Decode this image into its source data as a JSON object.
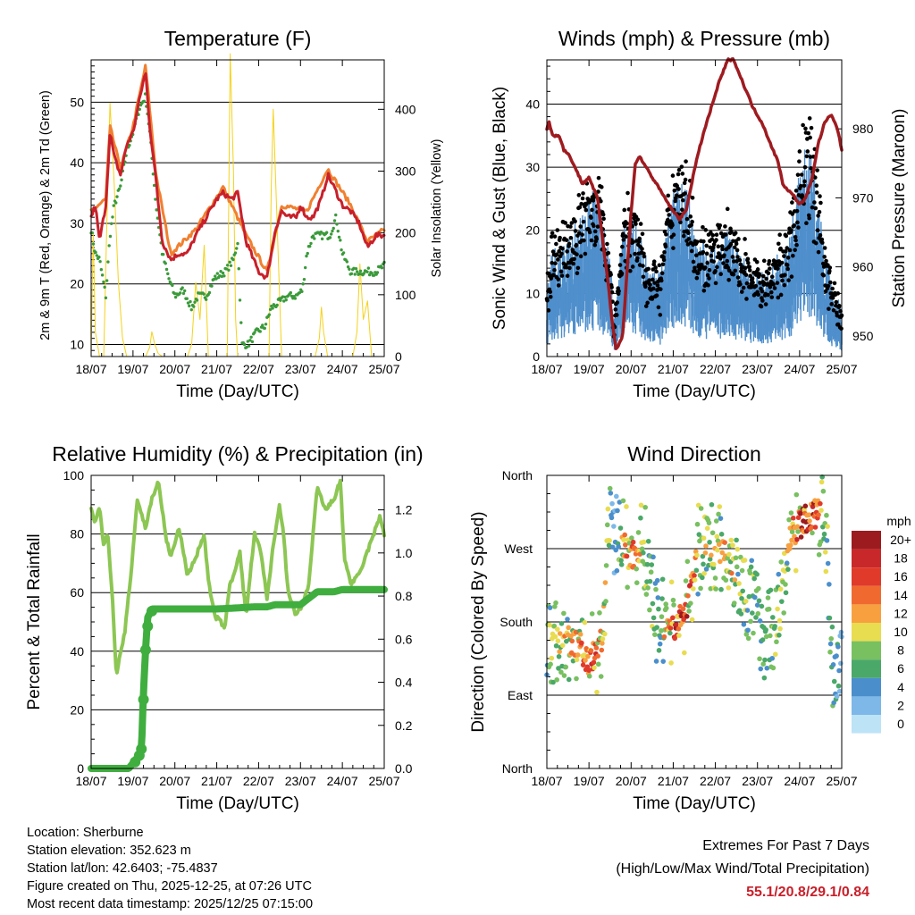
{
  "chart_data": [
    {
      "type": "line",
      "title": "Temperature (F)",
      "xlabel": "Time (Day/UTC)",
      "ylabel": "2m & 9m T (Red, Orange) & 2m Td (Green)",
      "y2label": "Solar Insolation (Yellow)",
      "x_ticks": [
        "18/07",
        "19/07",
        "20/07",
        "21/07",
        "22/07",
        "23/07",
        "24/07",
        "25/07"
      ],
      "xlim": [
        0,
        7
      ],
      "ylim": [
        8,
        57
      ],
      "y_ticks": [
        10,
        20,
        30,
        40,
        50
      ],
      "y2lim": [
        0,
        480
      ],
      "y2_ticks": [
        0,
        100,
        200,
        300,
        400
      ],
      "series": [
        {
          "name": "2m T",
          "color": "#c8202a",
          "x": [
            0,
            0.1,
            0.2,
            0.35,
            0.45,
            0.55,
            0.7,
            0.85,
            1.0,
            1.2,
            1.3,
            1.4,
            1.55,
            1.7,
            1.9,
            2.1,
            2.3,
            2.5,
            2.75,
            3.0,
            3.15,
            3.35,
            3.5,
            3.7,
            4.0,
            4.2,
            4.4,
            4.55,
            4.7,
            4.9,
            5.0,
            5.15,
            5.3,
            5.5,
            5.65,
            5.8,
            6.0,
            6.2,
            6.4,
            6.6,
            6.8,
            7.0
          ],
          "values": [
            31,
            33,
            27,
            33,
            45,
            41,
            38,
            43,
            45,
            52,
            55,
            46,
            37,
            27,
            24,
            25,
            25,
            28,
            31,
            34,
            35,
            34,
            35,
            27,
            22,
            21,
            29,
            32,
            31,
            31,
            33,
            31,
            31,
            34,
            38,
            36,
            33,
            32,
            30,
            26,
            28,
            28
          ]
        },
        {
          "name": "9m T",
          "color": "#f08030",
          "x": [
            0,
            0.35,
            0.45,
            0.7,
            1.0,
            1.3,
            1.55,
            1.9,
            2.5,
            3.15,
            3.7,
            4.2,
            4.55,
            5.15,
            5.65,
            6.2,
            6.6,
            7.0
          ],
          "values": [
            32,
            34,
            46,
            39,
            46,
            56,
            38,
            25,
            29,
            36,
            28,
            22,
            33,
            32,
            39,
            33,
            27,
            29
          ]
        },
        {
          "name": "2m Td",
          "color": "#3a9a3a",
          "x": [
            0,
            0.1,
            0.2,
            0.35,
            0.45,
            0.55,
            0.7,
            0.85,
            1.0,
            1.15,
            1.3,
            1.4,
            1.55,
            1.7,
            1.85,
            2.0,
            2.2,
            2.4,
            2.55,
            2.75,
            2.95,
            3.2,
            3.4,
            3.5,
            3.6,
            3.75,
            3.95,
            4.15,
            4.3,
            4.5,
            4.7,
            4.9,
            5.05,
            5.15,
            5.3,
            5.5,
            5.7,
            5.85,
            6.0,
            6.2,
            6.4,
            6.6,
            6.8,
            7.0
          ],
          "values": [
            29,
            25,
            24,
            18,
            28,
            33,
            36,
            42,
            45,
            49,
            51,
            45,
            33,
            25,
            21,
            18,
            19,
            16,
            18,
            18,
            21,
            22,
            24,
            27,
            10,
            10,
            12,
            13,
            16,
            17,
            18,
            18,
            19,
            25,
            28,
            28,
            28,
            31,
            25,
            22,
            22,
            22,
            22,
            23
          ]
        }
      ],
      "solar_series": {
        "name": "Solar Insolation",
        "color": "#f5d21a",
        "x": [
          0,
          0.05,
          0.1,
          0.2,
          0.3,
          0.37,
          0.45,
          0.55,
          0.65,
          0.75,
          0.85,
          1.0,
          1.3,
          1.4,
          1.45,
          1.52,
          1.6,
          1.7,
          2.0,
          2.3,
          2.4,
          2.5,
          2.6,
          2.7,
          2.8,
          3.0,
          3.25,
          3.32,
          3.4,
          3.45,
          3.5,
          3.6,
          3.7,
          4.0,
          4.25,
          4.3,
          4.35,
          4.45,
          4.55,
          4.6,
          4.7,
          5.0,
          5.35,
          5.45,
          5.5,
          5.55,
          5.65,
          5.75,
          6.0,
          6.25,
          6.35,
          6.42,
          6.5,
          6.6,
          6.7,
          7.0
        ],
        "values": [
          0,
          200,
          40,
          0,
          0,
          200,
          410,
          280,
          120,
          30,
          0,
          0,
          0,
          15,
          40,
          20,
          5,
          0,
          0,
          0,
          20,
          120,
          60,
          180,
          0,
          0,
          0,
          490,
          300,
          60,
          0,
          0,
          0,
          0,
          0,
          270,
          400,
          200,
          0,
          0,
          0,
          0,
          0,
          30,
          80,
          40,
          0,
          0,
          0,
          0,
          40,
          150,
          60,
          90,
          0,
          0
        ]
      }
    },
    {
      "type": "scatter",
      "title": "Winds (mph) & Pressure (mb)",
      "xlabel": "Time (Day/UTC)",
      "ylabel": "Sonic Wind & Gust (Blue, Black)",
      "y2label": "Station Pressure (Maroon)",
      "x_ticks": [
        "18/07",
        "19/07",
        "20/07",
        "21/07",
        "22/07",
        "23/07",
        "24/07",
        "25/07"
      ],
      "xlim": [
        0,
        7
      ],
      "ylim": [
        0,
        47
      ],
      "y_ticks": [
        0,
        10,
        20,
        30,
        40
      ],
      "y2lim": [
        947,
        990
      ],
      "y2_ticks": [
        950,
        960,
        970,
        980
      ],
      "wind_profile": {
        "x": [
          0,
          0.1,
          0.3,
          0.6,
          0.8,
          1.0,
          1.2,
          1.5,
          1.6,
          1.8,
          2.0,
          2.1,
          2.4,
          2.7,
          2.8,
          3.1,
          3.4,
          3.6,
          4.0,
          4.3,
          4.6,
          4.9,
          5.2,
          5.5,
          5.8,
          6.0,
          6.2,
          6.4,
          6.6,
          6.8,
          7.0
        ],
        "values": [
          5,
          8,
          9,
          10,
          12,
          13,
          14,
          8,
          2,
          10,
          12,
          11,
          7,
          6,
          10,
          16,
          13,
          9,
          9,
          10,
          8,
          7,
          6,
          8,
          10,
          16,
          18,
          15,
          8,
          5,
          3
        ]
      },
      "gust_color": "#000000",
      "wind_color": "#4f8fcc",
      "pressure": {
        "name": "Station Pressure",
        "color": "#9e1b20",
        "x": [
          0,
          0.05,
          0.15,
          0.3,
          0.4,
          0.55,
          0.7,
          0.85,
          1.0,
          1.2,
          1.3,
          1.45,
          1.55,
          1.65,
          1.8,
          2.0,
          2.1,
          2.2,
          2.4,
          2.6,
          2.8,
          3.0,
          3.15,
          3.3,
          3.5,
          3.7,
          3.9,
          4.1,
          4.3,
          4.45,
          4.5,
          4.7,
          4.9,
          5.1,
          5.3,
          5.5,
          5.6,
          5.75,
          5.9,
          6.0,
          6.15,
          6.3,
          6.45,
          6.6,
          6.75,
          6.9,
          7.0
        ],
        "values": [
          980,
          981,
          979,
          979,
          977,
          976,
          974,
          972,
          973,
          970,
          965,
          958,
          952,
          948,
          950,
          968,
          975,
          976,
          974,
          972,
          970,
          968,
          967,
          968,
          974,
          979,
          983,
          987,
          990,
          990,
          989,
          986,
          983,
          981,
          978,
          975,
          972,
          971,
          970,
          969,
          970,
          973,
          978,
          981,
          982,
          980,
          977
        ]
      }
    },
    {
      "type": "line",
      "title": "Relative Humidity (%) & Precipitation (in)",
      "xlabel": "Time (Day/UTC)",
      "ylabel": "Percent & Total Rainfall",
      "x_ticks": [
        "18/07",
        "19/07",
        "20/07",
        "21/07",
        "22/07",
        "23/07",
        "24/07",
        "25/07"
      ],
      "xlim": [
        0,
        7
      ],
      "ylim": [
        0,
        100
      ],
      "y_ticks": [
        0,
        20,
        40,
        60,
        80,
        100
      ],
      "y2lim": [
        0,
        1.36
      ],
      "y2_ticks": [
        0.0,
        0.2,
        0.4,
        0.6,
        0.8,
        1.0,
        1.2
      ],
      "series": [
        {
          "name": "Relative Humidity",
          "color": "#8cc653",
          "x": [
            0,
            0.1,
            0.2,
            0.3,
            0.4,
            0.5,
            0.6,
            0.8,
            0.95,
            1.1,
            1.3,
            1.45,
            1.6,
            1.8,
            1.9,
            2.1,
            2.3,
            2.5,
            2.7,
            2.8,
            2.95,
            3.1,
            3.2,
            3.3,
            3.4,
            3.55,
            3.7,
            3.9,
            4.05,
            4.2,
            4.35,
            4.5,
            4.6,
            4.7,
            4.9,
            5.05,
            5.2,
            5.4,
            5.6,
            5.8,
            5.95,
            6.05,
            6.2,
            6.4,
            6.6,
            6.75,
            6.9,
            7.0
          ],
          "values": [
            88,
            84,
            90,
            76,
            80,
            60,
            32,
            46,
            66,
            92,
            82,
            92,
            98,
            78,
            72,
            82,
            66,
            72,
            80,
            64,
            52,
            50,
            48,
            62,
            66,
            74,
            52,
            80,
            74,
            58,
            76,
            90,
            80,
            60,
            52,
            56,
            63,
            96,
            88,
            92,
            98,
            72,
            63,
            66,
            74,
            80,
            86,
            80
          ]
        },
        {
          "name": "Total Precipitation",
          "color": "#3fae3f",
          "x": [
            0,
            0.9,
            1.1,
            1.2,
            1.25,
            1.3,
            1.35,
            1.45,
            1.55,
            1.8,
            2.5,
            3.0,
            3.5,
            3.9,
            4.2,
            4.4,
            5.0,
            5.2,
            5.4,
            5.6,
            5.8,
            6.0,
            6.5,
            7.0
          ],
          "values": [
            0,
            0,
            0.05,
            0.08,
            0.35,
            0.55,
            0.7,
            0.74,
            0.74,
            0.74,
            0.74,
            0.74,
            0.745,
            0.75,
            0.75,
            0.76,
            0.76,
            0.79,
            0.82,
            0.82,
            0.82,
            0.83,
            0.83,
            0.83
          ]
        }
      ]
    },
    {
      "type": "scatter",
      "title": "Wind Direction",
      "xlabel": "Time (Day/UTC)",
      "ylabel": "Direction (Colored By Speed)",
      "x_ticks": [
        "18/07",
        "19/07",
        "20/07",
        "21/07",
        "22/07",
        "23/07",
        "24/07",
        "25/07"
      ],
      "xlim": [
        0,
        7
      ],
      "y_ticks": [
        "North",
        "East",
        "South",
        "West",
        "North"
      ],
      "ylim_deg": [
        0,
        360
      ],
      "colorbar_label": "mph",
      "colorbar_ticks": [
        "20+",
        "18",
        "16",
        "14",
        "12",
        "10",
        "8",
        "6",
        "4",
        "2",
        "0"
      ],
      "colorbar_colors": [
        "#9b1b1e",
        "#c8282a",
        "#e03a2a",
        "#f06a30",
        "#f8a040",
        "#e8dc50",
        "#78c060",
        "#4aa868",
        "#4a8fcc",
        "#7db8e8",
        "#bde3f6"
      ],
      "direction_profile": {
        "x": [
          0,
          0.4,
          0.8,
          1.0,
          1.3,
          1.5,
          1.8,
          2.0,
          2.3,
          2.6,
          3.0,
          3.3,
          3.6,
          4.0,
          4.3,
          4.6,
          4.9,
          5.2,
          5.5,
          5.8,
          6.0,
          6.3,
          6.6,
          6.8,
          7.0
        ],
        "deg": [
          150,
          160,
          150,
          130,
          155,
          300,
          280,
          260,
          280,
          180,
          175,
          190,
          270,
          275,
          265,
          230,
          200,
          160,
          190,
          290,
          300,
          310,
          320,
          110,
          150
        ]
      }
    }
  ],
  "info": {
    "location": "Location: Sherburne",
    "elevation": "Station elevation: 352.623 m",
    "latlon": "Station lat/lon: 42.6403; -75.4837",
    "created": "Figure created on Thu, 2025-12-25, at 07:26 UTC",
    "recent": "Most recent data timestamp: 2025/12/25 07:15:00"
  },
  "extremes": {
    "title": "Extremes For Past 7 Days",
    "subtitle": "(High/Low/Max Wind/Total Precipitation)",
    "values": "55.1/20.8/29.1/0.84"
  }
}
